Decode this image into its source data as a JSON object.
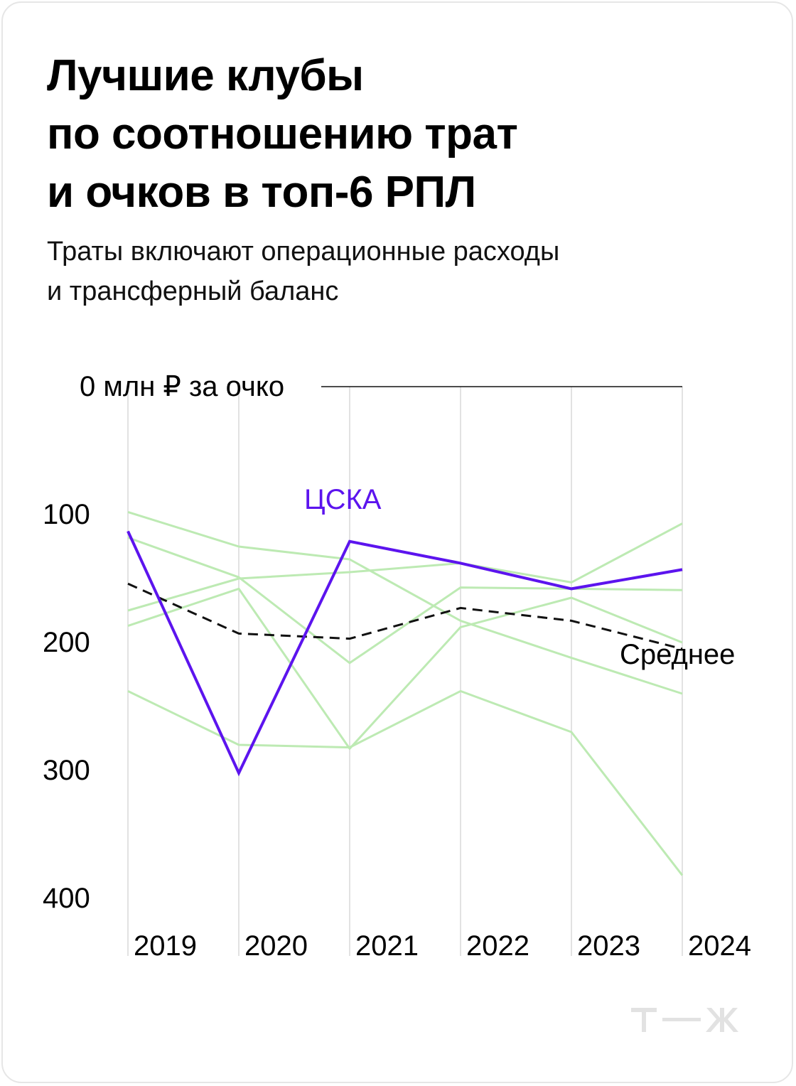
{
  "header": {
    "title_lines": [
      "Лучшие клубы",
      "по соотношению трат",
      "и очков в топ-6 РПЛ"
    ],
    "subtitle_lines": [
      "Траты включают операционные расходы",
      "и трансферный баланс"
    ]
  },
  "brand": {
    "logo_icon": "tzh-logo-icon",
    "logo_color": "#e2e2e2"
  },
  "chart_data": {
    "type": "line",
    "x": [
      2019,
      2020,
      2021,
      2022,
      2023,
      2024
    ],
    "x_tick_labels": [
      "2019",
      "2020",
      "2021",
      "2022",
      "2023",
      "2024"
    ],
    "y_tick_labels": [
      "0 млн ₽ за очко",
      "100",
      "200",
      "300",
      "400"
    ],
    "y_ticks": [
      0,
      100,
      200,
      300,
      400
    ],
    "ylim": [
      0,
      445
    ],
    "y_inverted": true,
    "colors": {
      "highlight": "#5c14ee",
      "average": "#111111",
      "others": "#bdeab3",
      "grid": "#d9d9d9"
    },
    "highlight": {
      "name": "ЦСКА",
      "values": [
        113,
        302,
        121,
        138,
        158,
        143
      ]
    },
    "average": {
      "name": "Среднее",
      "values": [
        154,
        193,
        197,
        173,
        183,
        205
      ]
    },
    "other_series": [
      [
        98,
        125,
        135,
        183,
        212,
        240
      ],
      [
        118,
        149,
        216,
        157,
        158,
        159
      ],
      [
        175,
        150,
        145,
        138,
        153,
        107
      ],
      [
        187,
        158,
        283,
        188,
        165,
        200
      ],
      [
        238,
        280,
        282,
        238,
        270,
        382
      ]
    ]
  }
}
